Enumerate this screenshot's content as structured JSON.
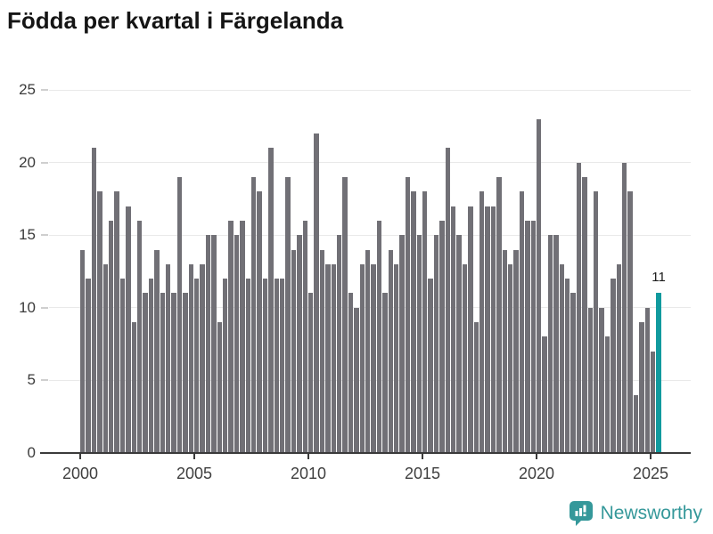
{
  "title": "Födda per kvartal i Färgelanda",
  "chart_data": {
    "type": "bar",
    "title": "Födda per kvartal i Färgelanda",
    "x_unit": "quarter",
    "x_start": "2000-Q1",
    "x_end": "2025-Q2",
    "x_tick_labels": [
      "2000",
      "2005",
      "2010",
      "2015",
      "2020",
      "2025"
    ],
    "y_ticks": [
      0,
      5,
      10,
      15,
      20,
      25
    ],
    "ylim": [
      0,
      25
    ],
    "grid": "horizontal",
    "bar_color": "#717076",
    "highlight_color": "#119a9e",
    "values": [
      14,
      12,
      21,
      18,
      13,
      16,
      18,
      12,
      17,
      9,
      16,
      11,
      12,
      14,
      11,
      13,
      11,
      19,
      11,
      13,
      12,
      13,
      15,
      15,
      9,
      12,
      16,
      15,
      16,
      12,
      19,
      18,
      12,
      21,
      12,
      12,
      19,
      14,
      15,
      16,
      11,
      22,
      14,
      13,
      13,
      15,
      19,
      11,
      10,
      13,
      14,
      13,
      16,
      11,
      14,
      13,
      15,
      19,
      18,
      15,
      18,
      12,
      15,
      16,
      21,
      17,
      15,
      13,
      17,
      9,
      18,
      17,
      17,
      19,
      14,
      13,
      14,
      18,
      16,
      16,
      23,
      8,
      15,
      15,
      13,
      12,
      11,
      20,
      19,
      10,
      18,
      10,
      8,
      12,
      13,
      20,
      18,
      4,
      9,
      10,
      7,
      11
    ],
    "highlight_index": 101,
    "highlight_label": "11",
    "legend": "none"
  },
  "footer": {
    "brand": "Newsworthy"
  }
}
